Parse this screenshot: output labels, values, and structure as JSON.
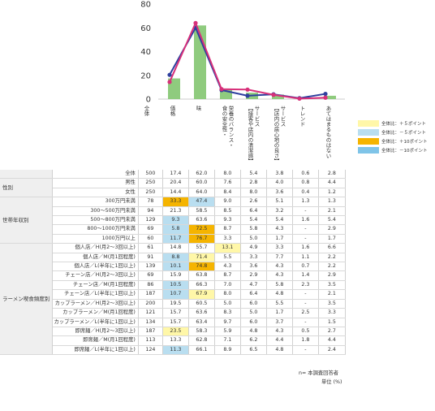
{
  "chart_data": {
    "type": "bar",
    "categories": [
      "価格",
      "味",
      "栄養のバランス・食の安全性",
      "サービス【接客や店内の清潔感】",
      "サービス【店内の居心地の良さ】",
      "トレンド",
      "あてはまるものはない"
    ],
    "ylim": [
      0,
      80
    ],
    "yticks": [
      0,
      20,
      40,
      60,
      80
    ],
    "bar_color": "#8fcb7e",
    "series": [
      {
        "values": [
          17.4,
          62.0,
          8.0,
          5.4,
          3.8,
          0.6,
          2.8
        ],
        "color": "#8fcb7e",
        "kind": "bar"
      },
      {
        "values": [
          20.4,
          60.0,
          7.6,
          2.8,
          4.0,
          0.8,
          4.4
        ],
        "color": "#2e3f9e",
        "kind": "line"
      },
      {
        "values": [
          14.4,
          64.0,
          8.4,
          8.0,
          3.6,
          0.4,
          1.2
        ],
        "color": "#d8307a",
        "kind": "line"
      }
    ]
  },
  "table": {
    "total_header": "全体",
    "columns": [
      "全体",
      "価格",
      "味",
      "栄養のバランス・\n食の安全性・",
      "サービス\n【接客や店内の清潔感】",
      "サービス\n【店内の居心地の良さ】",
      "トレンド",
      "あてはまるものはない"
    ],
    "rows": [
      {
        "group": "",
        "label": "全体",
        "n": "500",
        "v": [
          "17.4",
          "62.0",
          "8.0",
          "5.4",
          "3.8",
          "0.6",
          "2.8"
        ],
        "hl": [
          "",
          "",
          "",
          "",
          "",
          "",
          ""
        ]
      },
      {
        "group": "性別",
        "label": "男性",
        "n": "250",
        "v": [
          "20.4",
          "60.0",
          "7.6",
          "2.8",
          "4.0",
          "0.8",
          "4.4"
        ],
        "hl": [
          "",
          "",
          "",
          "",
          "",
          "",
          ""
        ]
      },
      {
        "group": "",
        "label": "女性",
        "n": "250",
        "v": [
          "14.4",
          "64.0",
          "8.4",
          "8.0",
          "3.6",
          "0.4",
          "1.2"
        ],
        "hl": [
          "",
          "",
          "",
          "",
          "",
          "",
          ""
        ]
      },
      {
        "group": "世帯年収別",
        "label": "300万円未満",
        "n": "78",
        "v": [
          "33.3",
          "47.4",
          "9.0",
          "2.6",
          "5.1",
          "1.3",
          "1.3"
        ],
        "hl": [
          "o",
          "b",
          "",
          "",
          "",
          "",
          ""
        ]
      },
      {
        "group": "",
        "label": "300〜500万円未満",
        "n": "94",
        "v": [
          "21.3",
          "58.5",
          "8.5",
          "6.4",
          "3.2",
          "-",
          "2.1"
        ],
        "hl": [
          "",
          "",
          "",
          "",
          "",
          "",
          ""
        ]
      },
      {
        "group": "",
        "label": "500〜800万円未満",
        "n": "129",
        "v": [
          "9.3",
          "63.6",
          "9.3",
          "5.4",
          "5.4",
          "1.6",
          "5.4"
        ],
        "hl": [
          "b",
          "",
          "",
          "",
          "",
          "",
          ""
        ]
      },
      {
        "group": "",
        "label": "800〜1000万円未満",
        "n": "69",
        "v": [
          "5.8",
          "72.5",
          "8.7",
          "5.8",
          "4.3",
          "-",
          "2.9"
        ],
        "hl": [
          "b",
          "o",
          "",
          "",
          "",
          "",
          ""
        ]
      },
      {
        "group": "",
        "label": "1000万円以上",
        "n": "60",
        "v": [
          "11.7",
          "76.7",
          "3.3",
          "5.0",
          "1.7",
          "-",
          "1.7"
        ],
        "hl": [
          "b",
          "o",
          "",
          "",
          "",
          "",
          ""
        ]
      },
      {
        "group": "ラーメン喫食頻度別",
        "label": "個人店／H(月2〜3回以上)",
        "n": "61",
        "v": [
          "14.8",
          "55.7",
          "13.1",
          "4.9",
          "3.3",
          "1.6",
          "6.6"
        ],
        "hl": [
          "",
          "",
          "y",
          "",
          "",
          "",
          ""
        ]
      },
      {
        "group": "",
        "label": "個人店／M(月1回程度)",
        "n": "91",
        "v": [
          "8.8",
          "71.4",
          "5.5",
          "3.3",
          "7.7",
          "1.1",
          "2.2"
        ],
        "hl": [
          "b",
          "y",
          "",
          "",
          "",
          "",
          ""
        ]
      },
      {
        "group": "",
        "label": "個人店／L(半年に1回以上)",
        "n": "139",
        "v": [
          "10.1",
          "74.8",
          "4.3",
          "3.6",
          "4.3",
          "0.7",
          "2.2"
        ],
        "hl": [
          "b",
          "o",
          "",
          "",
          "",
          "",
          ""
        ]
      },
      {
        "group": "",
        "label": "チェーン店／H(月2〜3回以上)",
        "n": "69",
        "v": [
          "15.9",
          "63.8",
          "8.7",
          "2.9",
          "4.3",
          "1.4",
          "2.9"
        ],
        "hl": [
          "",
          "",
          "",
          "",
          "",
          "",
          ""
        ]
      },
      {
        "group": "",
        "label": "チェーン店／M(月1回程度)",
        "n": "86",
        "v": [
          "10.5",
          "66.3",
          "7.0",
          "4.7",
          "5.8",
          "2.3",
          "3.5"
        ],
        "hl": [
          "b",
          "",
          "",
          "",
          "",
          "",
          ""
        ]
      },
      {
        "group": "",
        "label": "チェーン店／L(半年に1回以上)",
        "n": "187",
        "v": [
          "10.7",
          "67.9",
          "8.0",
          "6.4",
          "4.8",
          "-",
          "2.1"
        ],
        "hl": [
          "b",
          "y",
          "",
          "",
          "",
          "",
          ""
        ]
      },
      {
        "group": "",
        "label": "カップラーメン／H(月2〜3回以上)",
        "n": "200",
        "v": [
          "19.5",
          "60.5",
          "5.0",
          "6.0",
          "5.5",
          "-",
          "3.5"
        ],
        "hl": [
          "",
          "",
          "",
          "",
          "",
          "",
          ""
        ]
      },
      {
        "group": "",
        "label": "カップラーメン／M(月1回程度)",
        "n": "121",
        "v": [
          "15.7",
          "63.6",
          "8.3",
          "5.0",
          "1.7",
          "2.5",
          "3.3"
        ],
        "hl": [
          "",
          "",
          "",
          "",
          "",
          "",
          ""
        ]
      },
      {
        "group": "",
        "label": "カップラーメン／L(半年に1回以上)",
        "n": "134",
        "v": [
          "15.7",
          "63.4",
          "9.7",
          "6.0",
          "3.7",
          "-",
          "1.5"
        ],
        "hl": [
          "",
          "",
          "",
          "",
          "",
          "",
          ""
        ]
      },
      {
        "group": "",
        "label": "即席麺／H(月2〜3回以上)",
        "n": "187",
        "v": [
          "23.5",
          "58.3",
          "5.9",
          "4.8",
          "4.3",
          "0.5",
          "2.7"
        ],
        "hl": [
          "y",
          "",
          "",
          "",
          "",
          "",
          ""
        ]
      },
      {
        "group": "",
        "label": "即席麺／M(月1回程度)",
        "n": "113",
        "v": [
          "13.3",
          "62.8",
          "7.1",
          "6.2",
          "4.4",
          "1.8",
          "4.4"
        ],
        "hl": [
          "",
          "",
          "",
          "",
          "",
          "",
          ""
        ]
      },
      {
        "group": "",
        "label": "即席麺／L(半年に1回以上)",
        "n": "124",
        "v": [
          "11.3",
          "66.1",
          "8.9",
          "6.5",
          "4.8",
          "-",
          "2.4"
        ],
        "hl": [
          "b",
          "",
          "",
          "",
          "",
          "",
          ""
        ]
      }
    ]
  },
  "legend": [
    {
      "label": "全体比：＋５ポイント",
      "color": "#fff7a8"
    },
    {
      "label": "全体比：－５ポイント",
      "color": "#b9def0"
    },
    {
      "label": "全体比：＋10ポイント",
      "color": "#f5b400"
    },
    {
      "label": "全体比：－10ポイント",
      "color": "#7fc4e8"
    }
  ],
  "footer": {
    "note": "n= 本調査回答者",
    "unit": "単位 (%)"
  }
}
